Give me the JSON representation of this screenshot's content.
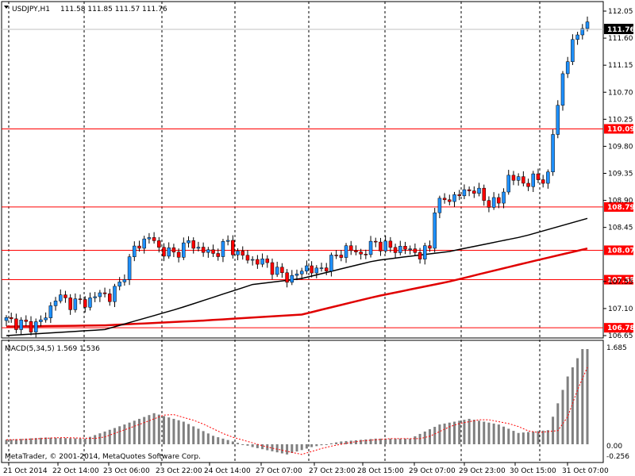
{
  "window": {
    "title": "USDJPY,H1",
    "ohlc": "111.58 111.85 111.57 111.76"
  },
  "macd": {
    "label": "MACD(5,34,5) 1.569 1.536",
    "levels": [
      "1.685",
      "0.00",
      "-0.256"
    ]
  },
  "copyright": "MetaTrader, © 2001-2014, MetaQuotes Software Corp.",
  "price_axis": {
    "ticks": [
      "112.05",
      "111.60",
      "111.15",
      "110.70",
      "110.25",
      "109.80",
      "109.35",
      "108.90",
      "108.45",
      "107.55",
      "107.10",
      "106.65"
    ],
    "current_price": "111.76",
    "current_price_color": "#000000"
  },
  "horizontal_levels": [
    {
      "label": "110.09",
      "color": "#ff0000"
    },
    {
      "label": "108.79",
      "color": "#ff0000"
    },
    {
      "label": "108.07",
      "color": "#ff0000"
    },
    {
      "label": "107.58",
      "color": "#ff0000"
    },
    {
      "label": "106.78",
      "color": "#ff0000"
    }
  ],
  "time_axis": [
    "21 Oct 2014",
    "22 Oct 14:00",
    "23 Oct 06:00",
    "23 Oct 22:00",
    "24 Oct 14:00",
    "27 Oct 07:00",
    "27 Oct 23:00",
    "28 Oct 15:00",
    "29 Oct 07:00",
    "29 Oct 23:00",
    "30 Oct 15:00",
    "31 Oct 07:00"
  ],
  "colors": {
    "bull": "#1e90ff",
    "bear": "#ff0000",
    "ma_fast": "#000000",
    "ma_slow": "#e00000",
    "histogram": "#808080",
    "signal": "#ff0000"
  },
  "chart_data": {
    "type": "candlestick",
    "symbol": "USDJPY",
    "timeframe": "H1",
    "ylim": [
      106.6,
      112.1
    ],
    "levels": [
      110.09,
      108.79,
      108.07,
      107.58,
      106.78
    ],
    "last": 111.76,
    "close_path": [
      [
        0,
        106.9
      ],
      [
        3,
        106.85
      ],
      [
        5,
        106.8
      ],
      [
        8,
        106.95
      ],
      [
        10,
        107.3
      ],
      [
        13,
        107.2
      ],
      [
        16,
        107.2
      ],
      [
        19,
        107.35
      ],
      [
        21,
        107.3
      ],
      [
        23,
        107.5
      ],
      [
        26,
        108.1
      ],
      [
        29,
        108.3
      ],
      [
        31,
        108.1
      ],
      [
        34,
        108.0
      ],
      [
        37,
        108.2
      ],
      [
        39,
        108.1
      ],
      [
        42,
        108.0
      ],
      [
        45,
        108.2
      ],
      [
        47,
        108.0
      ],
      [
        50,
        107.9
      ],
      [
        53,
        107.85
      ],
      [
        55,
        107.7
      ],
      [
        58,
        107.6
      ],
      [
        61,
        107.8
      ],
      [
        63,
        107.7
      ],
      [
        66,
        107.9
      ],
      [
        69,
        108.1
      ],
      [
        72,
        108.0
      ],
      [
        75,
        108.2
      ],
      [
        78,
        108.1
      ],
      [
        81,
        108.1
      ],
      [
        84,
        108.0
      ],
      [
        86,
        108.1
      ],
      [
        87,
        108.8
      ],
      [
        89,
        108.9
      ],
      [
        92,
        109.0
      ],
      [
        95,
        109.1
      ],
      [
        97,
        108.9
      ],
      [
        100,
        108.85
      ],
      [
        102,
        109.3
      ],
      [
        105,
        109.2
      ],
      [
        108,
        109.25
      ],
      [
        110,
        109.3
      ],
      [
        111,
        110.0
      ],
      [
        113,
        111.0
      ],
      [
        115,
        111.5
      ],
      [
        117,
        111.85
      ],
      [
        118,
        111.76
      ]
    ],
    "moving_averages": {
      "fast": [
        [
          0,
          106.65
        ],
        [
          20,
          106.75
        ],
        [
          35,
          107.1
        ],
        [
          50,
          107.5
        ],
        [
          60,
          107.6
        ],
        [
          75,
          107.9
        ],
        [
          90,
          108.05
        ],
        [
          105,
          108.3
        ],
        [
          118,
          108.6
        ]
      ],
      "slow": [
        [
          0,
          106.8
        ],
        [
          20,
          106.82
        ],
        [
          40,
          106.9
        ],
        [
          60,
          107.0
        ],
        [
          75,
          107.3
        ],
        [
          90,
          107.55
        ],
        [
          105,
          107.85
        ],
        [
          118,
          108.1
        ]
      ]
    },
    "macd_histogram": [
      [
        0,
        0.08
      ],
      [
        8,
        0.12
      ],
      [
        16,
        0.1
      ],
      [
        24,
        0.35
      ],
      [
        30,
        0.55
      ],
      [
        36,
        0.4
      ],
      [
        42,
        0.15
      ],
      [
        50,
        -0.05
      ],
      [
        57,
        -0.18
      ],
      [
        62,
        -0.05
      ],
      [
        68,
        0.05
      ],
      [
        75,
        0.1
      ],
      [
        82,
        0.1
      ],
      [
        88,
        0.35
      ],
      [
        94,
        0.45
      ],
      [
        100,
        0.35
      ],
      [
        104,
        0.2
      ],
      [
        110,
        0.25
      ],
      [
        114,
        1.2
      ],
      [
        117,
        1.685
      ]
    ]
  }
}
